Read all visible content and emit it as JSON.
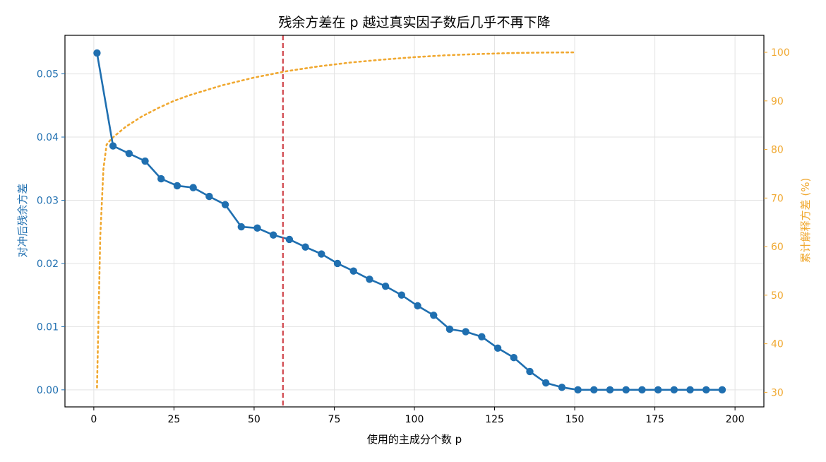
{
  "chart_data": {
    "type": "line",
    "title": "残余方差在 p 越过真实因子数后几乎不再下降",
    "xlabel": "使用的主成分个数 p",
    "ylabel_left": "对冲后残余方差",
    "ylabel_right": "累计解释方差 (%)",
    "xlim": [
      -9,
      209
    ],
    "ylim_left": [
      -0.0027,
      0.0561
    ],
    "ylim_right": [
      27.0,
      103.5
    ],
    "x_ticks": [
      0,
      25,
      50,
      75,
      100,
      125,
      150,
      175,
      200
    ],
    "y_left_ticks": [
      0.0,
      0.01,
      0.02,
      0.03,
      0.04,
      0.05
    ],
    "y_left_tick_labels": [
      "0.00",
      "0.01",
      "0.02",
      "0.03",
      "0.04",
      "0.05"
    ],
    "y_right_ticks": [
      30,
      40,
      50,
      60,
      70,
      80,
      90,
      100
    ],
    "grid": true,
    "colors": {
      "residual": "#1f6fb0",
      "cumulative": "#f0a830",
      "vline": "#d0454c",
      "axis": "#000000",
      "grid": "#e3e3e3"
    },
    "series": [
      {
        "axis": "left",
        "style": "solid-markers",
        "x": [
          1,
          6,
          11,
          16,
          21,
          26,
          31,
          36,
          41,
          46,
          51,
          56,
          61,
          66,
          71,
          76,
          81,
          86,
          91,
          96,
          101,
          106,
          111,
          116,
          121,
          126,
          131,
          136,
          141,
          146,
          151,
          156,
          161,
          166,
          171,
          176,
          181,
          186,
          191,
          196
        ],
        "values": [
          0.0533,
          0.0386,
          0.0374,
          0.0362,
          0.0334,
          0.0323,
          0.032,
          0.0306,
          0.0293,
          0.0258,
          0.0256,
          0.0245,
          0.0238,
          0.0226,
          0.0215,
          0.02,
          0.0188,
          0.0175,
          0.0164,
          0.015,
          0.0133,
          0.0118,
          0.0096,
          0.0092,
          0.0084,
          0.0066,
          0.0051,
          0.0029,
          0.0011,
          0.0004,
          0.0,
          0.0,
          0.0,
          0.0,
          0.0,
          0.0,
          0.0,
          0.0,
          0.0,
          0.0
        ]
      },
      {
        "axis": "right",
        "style": "dotted",
        "x": [
          1,
          2,
          3,
          4,
          5,
          6,
          8,
          10,
          15,
          20,
          25,
          30,
          40,
          50,
          60,
          70,
          80,
          90,
          100,
          110,
          120,
          130,
          140,
          150
        ],
        "values": [
          31.0,
          62.0,
          76.0,
          81.0,
          81.8,
          82.5,
          83.6,
          84.7,
          86.8,
          88.5,
          90.0,
          91.2,
          93.2,
          94.8,
          96.1,
          97.1,
          97.9,
          98.5,
          99.0,
          99.4,
          99.65,
          99.85,
          99.95,
          100.0
        ]
      }
    ],
    "vline": {
      "x": 59
    }
  }
}
